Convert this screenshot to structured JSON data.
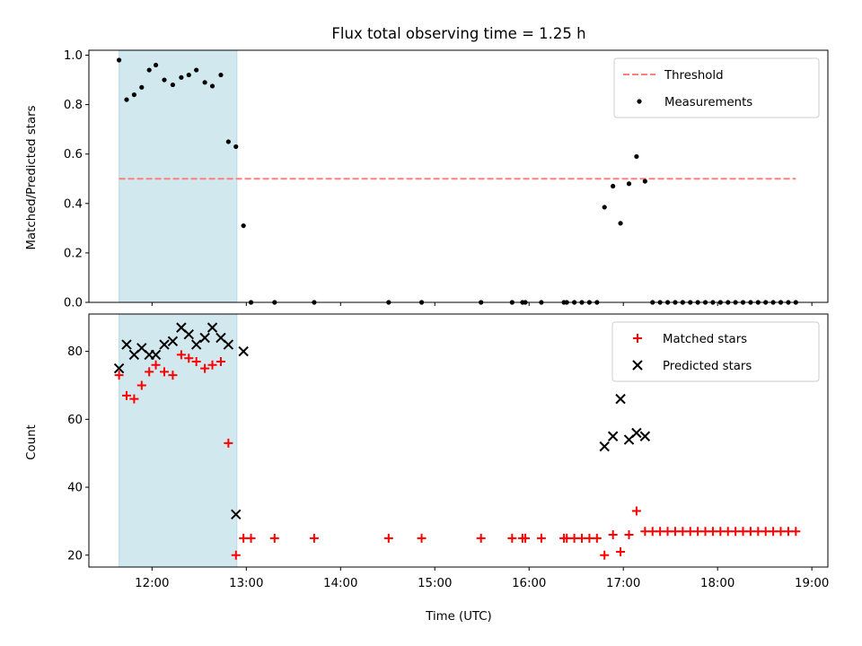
{
  "chart_data": {
    "title": "Flux total observing time = 1.25 h",
    "type": "scatter",
    "xlabel": "Time (UTC)",
    "xlim_hours": [
      11.33,
      19.17
    ],
    "xticks": [
      "12:00",
      "13:00",
      "14:00",
      "15:00",
      "16:00",
      "17:00",
      "18:00",
      "19:00"
    ],
    "shaded_interval_hours": [
      11.65,
      12.9
    ],
    "shade_color": "#d1e8ef",
    "panels": [
      {
        "ylabel": "Matched/Predicted stars",
        "ylim": [
          0,
          1.02
        ],
        "yticks": [
          "0.0",
          "0.2",
          "0.4",
          "0.6",
          "0.8",
          "1.0"
        ],
        "legend_position": "upper right",
        "threshold": {
          "name": "Threshold",
          "value": 0.5,
          "x_range": [
            11.65,
            18.83
          ],
          "color": "#ff7f7f",
          "style": "dashed"
        },
        "series": [
          {
            "name": "Measurements",
            "marker": "dot",
            "color": "#000000",
            "points": [
              [
                11.65,
                0.98
              ],
              [
                11.73,
                0.82
              ],
              [
                11.81,
                0.84
              ],
              [
                11.89,
                0.87
              ],
              [
                11.97,
                0.94
              ],
              [
                12.04,
                0.96
              ],
              [
                12.13,
                0.9
              ],
              [
                12.22,
                0.88
              ],
              [
                12.31,
                0.91
              ],
              [
                12.39,
                0.92
              ],
              [
                12.47,
                0.94
              ],
              [
                12.56,
                0.89
              ],
              [
                12.64,
                0.875
              ],
              [
                12.73,
                0.92
              ],
              [
                12.81,
                0.65
              ],
              [
                12.89,
                0.63
              ],
              [
                12.97,
                0.31
              ],
              [
                13.05,
                0.0
              ],
              [
                13.3,
                0.0
              ],
              [
                13.72,
                0.0
              ],
              [
                14.51,
                0.0
              ],
              [
                14.86,
                0.0
              ],
              [
                15.49,
                0.0
              ],
              [
                15.82,
                0.0
              ],
              [
                15.93,
                0.0
              ],
              [
                15.96,
                0.0
              ],
              [
                16.13,
                0.0
              ],
              [
                16.37,
                0.0
              ],
              [
                16.4,
                0.0
              ],
              [
                16.48,
                0.0
              ],
              [
                16.56,
                0.0
              ],
              [
                16.64,
                0.0
              ],
              [
                16.72,
                0.0
              ],
              [
                16.8,
                0.385
              ],
              [
                16.89,
                0.47
              ],
              [
                16.97,
                0.32
              ],
              [
                17.06,
                0.48
              ],
              [
                17.14,
                0.59
              ],
              [
                17.23,
                0.49
              ],
              [
                17.31,
                0.0
              ],
              [
                17.39,
                0.0
              ],
              [
                17.47,
                0.0
              ],
              [
                17.55,
                0.0
              ],
              [
                17.63,
                0.0
              ],
              [
                17.71,
                0.0
              ],
              [
                17.79,
                0.0
              ],
              [
                17.87,
                0.0
              ],
              [
                17.95,
                0.0
              ],
              [
                18.03,
                0.0
              ],
              [
                18.11,
                0.0
              ],
              [
                18.19,
                0.0
              ],
              [
                18.27,
                0.0
              ],
              [
                18.35,
                0.0
              ],
              [
                18.43,
                0.0
              ],
              [
                18.51,
                0.0
              ],
              [
                18.59,
                0.0
              ],
              [
                18.67,
                0.0
              ],
              [
                18.75,
                0.0
              ],
              [
                18.83,
                0.0
              ]
            ]
          }
        ]
      },
      {
        "ylabel": "Count",
        "ylim": [
          16.5,
          91
        ],
        "yticks": [
          "20",
          "40",
          "60",
          "80"
        ],
        "legend_position": "upper right",
        "series": [
          {
            "name": "Matched stars",
            "marker": "plus",
            "color": "#ff0000",
            "points": [
              [
                11.65,
                73
              ],
              [
                11.73,
                67
              ],
              [
                11.81,
                66
              ],
              [
                11.89,
                70
              ],
              [
                11.97,
                74
              ],
              [
                12.04,
                76
              ],
              [
                12.13,
                74
              ],
              [
                12.22,
                73
              ],
              [
                12.31,
                79
              ],
              [
                12.39,
                78
              ],
              [
                12.47,
                77
              ],
              [
                12.56,
                75
              ],
              [
                12.64,
                76
              ],
              [
                12.73,
                77
              ],
              [
                12.81,
                53
              ],
              [
                12.89,
                20
              ],
              [
                12.97,
                25
              ],
              [
                13.05,
                25
              ],
              [
                13.3,
                25
              ],
              [
                13.72,
                25
              ],
              [
                14.51,
                25
              ],
              [
                14.86,
                25
              ],
              [
                15.49,
                25
              ],
              [
                15.82,
                25
              ],
              [
                15.93,
                25
              ],
              [
                15.96,
                25
              ],
              [
                16.13,
                25
              ],
              [
                16.37,
                25
              ],
              [
                16.4,
                25
              ],
              [
                16.48,
                25
              ],
              [
                16.56,
                25
              ],
              [
                16.64,
                25
              ],
              [
                16.72,
                25
              ],
              [
                16.8,
                20
              ],
              [
                16.89,
                26
              ],
              [
                16.97,
                21
              ],
              [
                17.06,
                26
              ],
              [
                17.14,
                33
              ],
              [
                17.23,
                27
              ],
              [
                17.31,
                27
              ],
              [
                17.39,
                27
              ],
              [
                17.47,
                27
              ],
              [
                17.55,
                27
              ],
              [
                17.63,
                27
              ],
              [
                17.71,
                27
              ],
              [
                17.79,
                27
              ],
              [
                17.87,
                27
              ],
              [
                17.95,
                27
              ],
              [
                18.03,
                27
              ],
              [
                18.11,
                27
              ],
              [
                18.19,
                27
              ],
              [
                18.27,
                27
              ],
              [
                18.35,
                27
              ],
              [
                18.43,
                27
              ],
              [
                18.51,
                27
              ],
              [
                18.59,
                27
              ],
              [
                18.67,
                27
              ],
              [
                18.75,
                27
              ],
              [
                18.83,
                27
              ]
            ]
          },
          {
            "name": "Predicted stars",
            "marker": "x",
            "color": "#000000",
            "points": [
              [
                11.65,
                75
              ],
              [
                11.73,
                82
              ],
              [
                11.81,
                79
              ],
              [
                11.89,
                81
              ],
              [
                11.97,
                79
              ],
              [
                12.04,
                79
              ],
              [
                12.13,
                82
              ],
              [
                12.22,
                83
              ],
              [
                12.31,
                87
              ],
              [
                12.39,
                85
              ],
              [
                12.47,
                82
              ],
              [
                12.56,
                84
              ],
              [
                12.64,
                87
              ],
              [
                12.73,
                84
              ],
              [
                12.81,
                82
              ],
              [
                12.89,
                32
              ],
              [
                12.97,
                80
              ],
              [
                16.8,
                52
              ],
              [
                16.89,
                55
              ],
              [
                16.97,
                66
              ],
              [
                17.06,
                54
              ],
              [
                17.14,
                56
              ],
              [
                17.23,
                55
              ]
            ]
          }
        ]
      }
    ]
  }
}
